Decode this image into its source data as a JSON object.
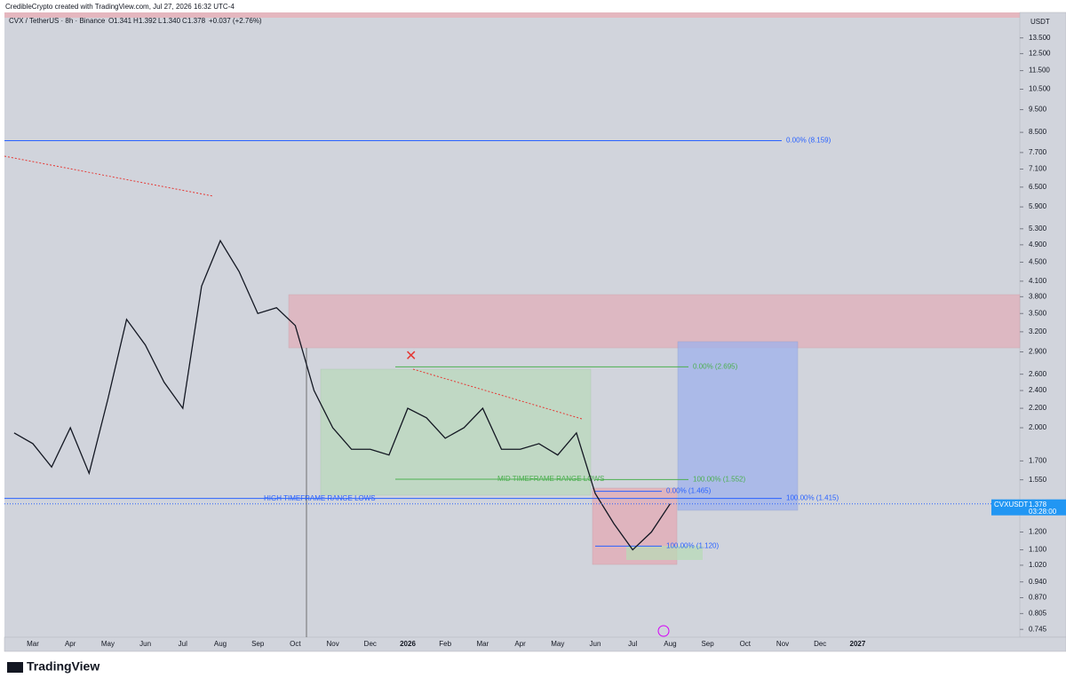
{
  "header": {
    "credit": "CredibleCrypto created with TradingView.com, Jul 27, 2026 16:32 UTC-4",
    "currency_button": "USDT",
    "brand": "TradingView"
  },
  "chart_data": {
    "type": "line",
    "log_scale": true,
    "title": "CVX / TetherUS · 8h · Binance",
    "ohlc": {
      "open_label": "O",
      "open": "1.341",
      "high_label": "H",
      "high": "1.392",
      "low_label": "L",
      "low": "1.340",
      "close_label": "C",
      "close": "1.378",
      "change": "+0.037 (+2.76%)"
    },
    "xticks": [
      "Mar",
      "Apr",
      "May",
      "Jun",
      "Jul",
      "Aug",
      "Sep",
      "Oct",
      "Nov",
      "Dec",
      "2026",
      "Feb",
      "Mar",
      "Apr",
      "May",
      "Jun",
      "Jul",
      "Aug",
      "Sep",
      "Oct",
      "Nov",
      "Dec",
      "2027"
    ],
    "series": [
      {
        "name": "CVXUSDT",
        "color": "#131722",
        "values": [
          1.95,
          1.85,
          1.65,
          2.0,
          1.6,
          2.3,
          3.4,
          3.0,
          2.5,
          2.2,
          4.0,
          5.0,
          4.3,
          3.5,
          3.6,
          3.3,
          2.4,
          2.0,
          1.8,
          1.8,
          1.75,
          2.2,
          2.1,
          1.9,
          2.0,
          2.2,
          1.8,
          1.8,
          1.85,
          1.75,
          1.95,
          1.45,
          1.25,
          1.1,
          1.2,
          1.378
        ]
      }
    ],
    "price_tag": {
      "symbol": "CVXUSDT",
      "price": 1.378,
      "countdown": "03:28:00"
    },
    "ylim": [
      0.717,
      14.9
    ],
    "yticks": [
      {
        "value": 13.5,
        "label": "13.500"
      },
      {
        "value": 12.5,
        "label": "12.500"
      },
      {
        "value": 11.5,
        "label": "11.500"
      },
      {
        "value": 10.5,
        "label": "10.500"
      },
      {
        "value": 9.5,
        "label": "9.500"
      },
      {
        "value": 8.5,
        "label": "8.500"
      },
      {
        "value": 7.7,
        "label": "7.700"
      },
      {
        "value": 7.1,
        "label": "7.100"
      },
      {
        "value": 6.5,
        "label": "6.500"
      },
      {
        "value": 5.9,
        "label": "5.900"
      },
      {
        "value": 5.3,
        "label": "5.300"
      },
      {
        "value": 4.9,
        "label": "4.900"
      },
      {
        "value": 4.5,
        "label": "4.500"
      },
      {
        "value": 4.1,
        "label": "4.100"
      },
      {
        "value": 3.8,
        "label": "3.800"
      },
      {
        "value": 3.5,
        "label": "3.500"
      },
      {
        "value": 3.2,
        "label": "3.200"
      },
      {
        "value": 2.9,
        "label": "2.900"
      },
      {
        "value": 2.6,
        "label": "2.600"
      },
      {
        "value": 2.4,
        "label": "2.400"
      },
      {
        "value": 2.2,
        "label": "2.200"
      },
      {
        "value": 2.0,
        "label": "2.000"
      },
      {
        "value": 1.7,
        "label": "1.700"
      },
      {
        "value": 1.55,
        "label": "1.550"
      },
      {
        "value": 1.2,
        "label": "1.200"
      },
      {
        "value": 1.1,
        "label": "1.100"
      },
      {
        "value": 1.02,
        "label": "1.020"
      },
      {
        "value": 0.94,
        "label": "0.940"
      },
      {
        "value": 0.87,
        "label": "0.870"
      },
      {
        "value": 0.805,
        "label": "0.805"
      },
      {
        "value": 0.745,
        "label": "0.745"
      }
    ],
    "levels": [
      {
        "label": "0.00% (8.159)",
        "value": 8.159,
        "color": "#2962ff"
      },
      {
        "label": "0.00% (2.695)",
        "value": 2.695,
        "color": "#4caf50"
      },
      {
        "label": "100.00% (1.552)",
        "value": 1.552,
        "color": "#4caf50"
      },
      {
        "label": "100.00% (1.415)",
        "value": 1.415,
        "color": "#2962ff"
      },
      {
        "label": "0.00% (1.465)",
        "value": 1.465,
        "color": "#2962ff"
      },
      {
        "label": "100.00% (1.120)",
        "value": 1.12,
        "color": "#2962ff"
      }
    ],
    "annotations": [
      "HIGH TIMEFRAME RANGE LOWS",
      "MID TIMEFRAME RANGE LOWS"
    ]
  }
}
